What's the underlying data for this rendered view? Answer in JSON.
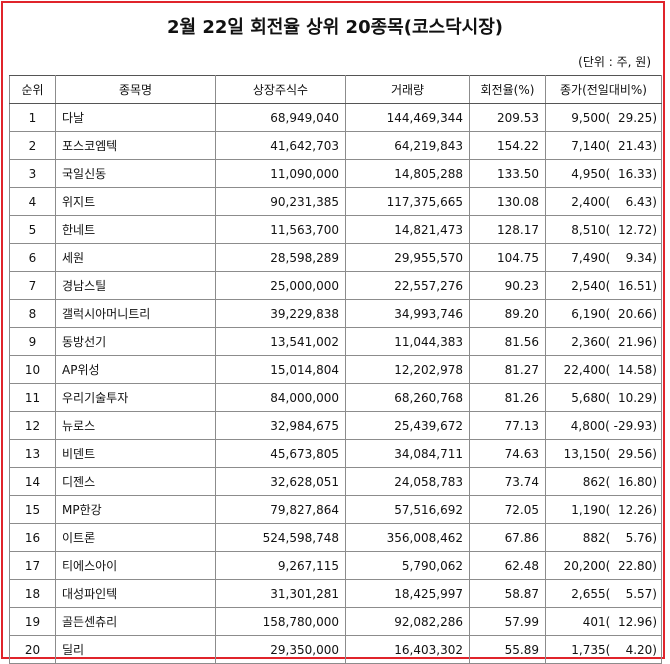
{
  "title": "2월 22일 회전율 상위 20종목(코스닥시장)",
  "unit": "(단위 : 주, 원)",
  "columns": [
    "순위",
    "종목명",
    "상장주식수",
    "거래량",
    "회전율(%)",
    "종가(전일대비%)"
  ],
  "rows": [
    [
      "1",
      "다날",
      "68,949,040",
      "144,469,344",
      "209.53",
      "9,500(  29.25)"
    ],
    [
      "2",
      "포스코엠텍",
      "41,642,703",
      "64,219,843",
      "154.22",
      "7,140(  21.43)"
    ],
    [
      "3",
      "국일신동",
      "11,090,000",
      "14,805,288",
      "133.50",
      "4,950(  16.33)"
    ],
    [
      "4",
      "위지트",
      "90,231,385",
      "117,375,665",
      "130.08",
      "2,400(    6.43)"
    ],
    [
      "5",
      "한네트",
      "11,563,700",
      "14,821,473",
      "128.17",
      "8,510(  12.72)"
    ],
    [
      "6",
      "세원",
      "28,598,289",
      "29,955,570",
      "104.75",
      "7,490(    9.34)"
    ],
    [
      "7",
      "경남스틸",
      "25,000,000",
      "22,557,276",
      "90.23",
      "2,540(  16.51)"
    ],
    [
      "8",
      "갤럭시아머니트리",
      "39,229,838",
      "34,993,746",
      "89.20",
      "6,190(  20.66)"
    ],
    [
      "9",
      "동방선기",
      "13,541,002",
      "11,044,383",
      "81.56",
      "2,360(  21.96)"
    ],
    [
      "10",
      "AP위성",
      "15,014,804",
      "12,202,978",
      "81.27",
      "22,400(  14.58)"
    ],
    [
      "11",
      "우리기술투자",
      "84,000,000",
      "68,260,768",
      "81.26",
      "5,680(  10.29)"
    ],
    [
      "12",
      "뉴로스",
      "32,984,675",
      "25,439,672",
      "77.13",
      "4,800( -29.93)"
    ],
    [
      "13",
      "비덴트",
      "45,673,805",
      "34,084,711",
      "74.63",
      "13,150(  29.56)"
    ],
    [
      "14",
      "디젠스",
      "32,628,051",
      "24,058,783",
      "73.74",
      "862(  16.80)"
    ],
    [
      "15",
      "MP한강",
      "79,827,864",
      "57,516,692",
      "72.05",
      "1,190(  12.26)"
    ],
    [
      "16",
      "이트론",
      "524,598,748",
      "356,008,462",
      "67.86",
      "882(    5.76)"
    ],
    [
      "17",
      "티에스아이",
      "9,267,115",
      "5,790,062",
      "62.48",
      "20,200(  22.80)"
    ],
    [
      "18",
      "대성파인텍",
      "31,301,281",
      "18,425,997",
      "58.87",
      "2,655(    5.57)"
    ],
    [
      "19",
      "골든센츄리",
      "158,780,000",
      "92,082,286",
      "57.99",
      "401(  12.96)"
    ],
    [
      "20",
      "딜리",
      "29,350,000",
      "16,403,302",
      "55.89",
      "1,735(    4.20)"
    ]
  ],
  "colors": {
    "frame": "#e0242b",
    "grid": "#8c8c8c"
  }
}
